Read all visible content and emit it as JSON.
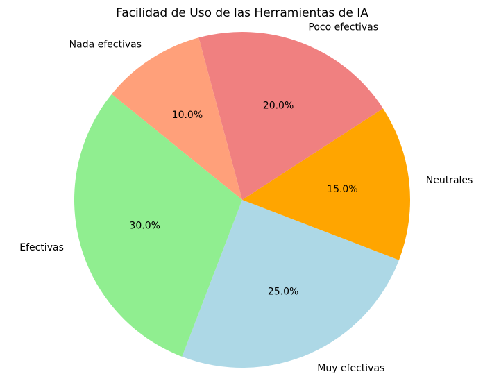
{
  "chart_data": {
    "type": "pie",
    "title": "Facilidad de Uso de las Herramientas de IA",
    "categories": [
      "Muy efectivas",
      "Neutrales",
      "Poco efectivas",
      "Nada efectivas",
      "Efectivas"
    ],
    "values": [
      25,
      15,
      20,
      10,
      30
    ],
    "value_labels": [
      "25.0%",
      "15.0%",
      "20.0%",
      "10.0%",
      "30.0%"
    ],
    "colors": [
      "#add8e6",
      "#ffa500",
      "#f08080",
      "#ffa07a",
      "#90ee90"
    ],
    "startangle": 249
  }
}
